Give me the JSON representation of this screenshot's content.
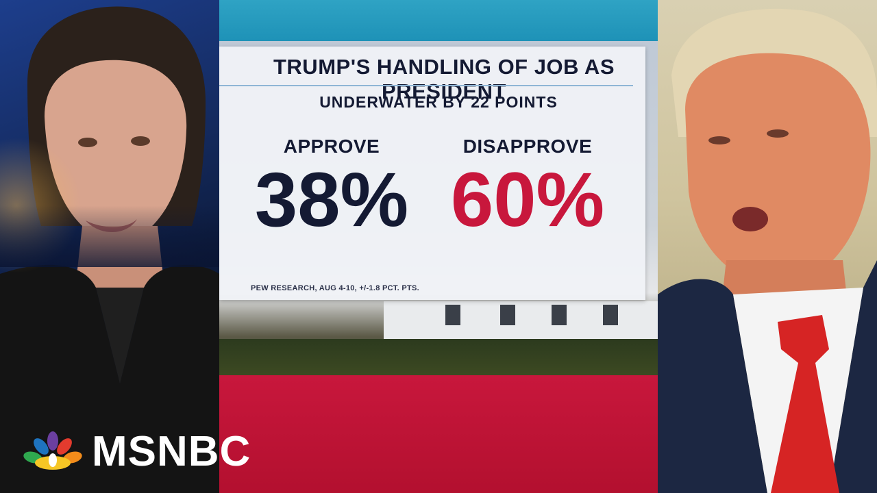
{
  "graphic": {
    "title": "TRUMP'S HANDLING OF JOB AS PRESIDENT",
    "subtitle": "UNDERWATER BY 22 POINTS",
    "approve": {
      "label": "APPROVE",
      "value": "38%"
    },
    "disapprove": {
      "label": "DISAPPROVE",
      "value": "60%"
    },
    "source": "PEW RESEARCH, AUG 4-10, +/-1.8 PCT. PTS."
  },
  "logo": {
    "text": "MSNBC",
    "icon": "peacock-icon"
  },
  "colors": {
    "navy": "#141a33",
    "red": "#c8173c",
    "card": "#f0f2f6",
    "sky": "#1b8fb5"
  }
}
